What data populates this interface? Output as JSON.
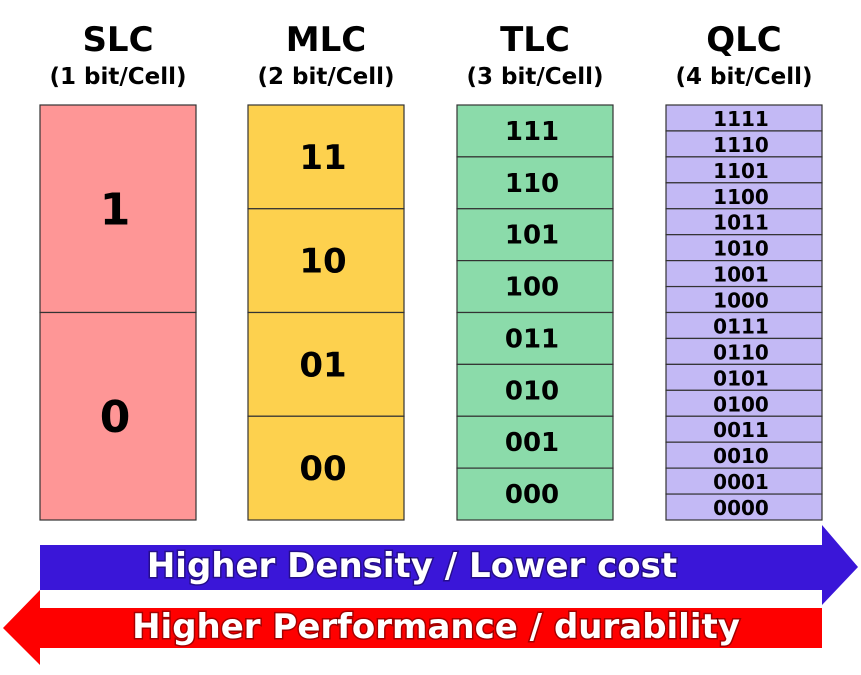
{
  "columns": [
    {
      "title": "SLC",
      "subtitle": "(1 bit/Cell)",
      "states": [
        "1",
        "0"
      ]
    },
    {
      "title": "MLC",
      "subtitle": "(2 bit/Cell)",
      "states": [
        "11",
        "10",
        "01",
        "00"
      ]
    },
    {
      "title": "TLC",
      "subtitle": "(3 bit/Cell)",
      "states": [
        "111",
        "110",
        "101",
        "100",
        "011",
        "010",
        "001",
        "000"
      ]
    },
    {
      "title": "QLC",
      "subtitle": "(4 bit/Cell)",
      "states": [
        "1111",
        "1110",
        "1101",
        "1100",
        "1011",
        "1010",
        "1001",
        "1000",
        "0111",
        "0110",
        "0101",
        "0100",
        "0011",
        "0010",
        "0001",
        "0000"
      ]
    }
  ],
  "arrows": {
    "right": "Higher Density / Lower cost",
    "left": "Higher Performance / durability"
  }
}
